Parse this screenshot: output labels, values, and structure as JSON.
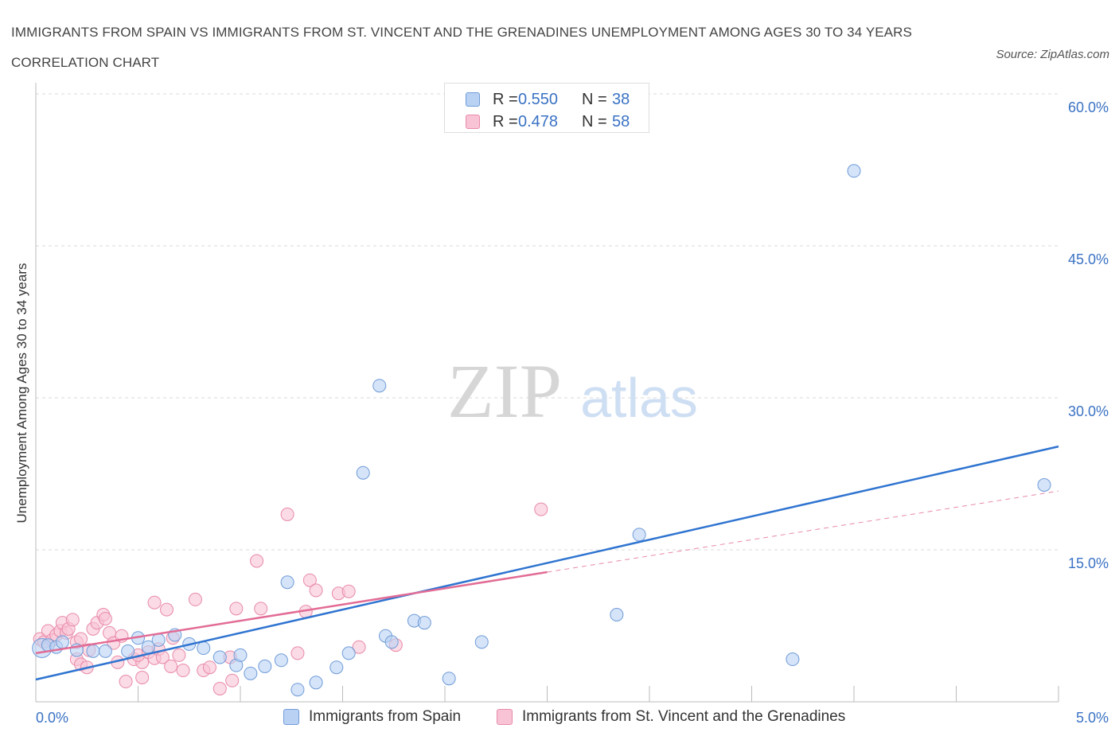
{
  "title": "IMMIGRANTS FROM SPAIN VS IMMIGRANTS FROM ST. VINCENT AND THE GRENADINES UNEMPLOYMENT AMONG AGES 30 TO 34 YEARS CORRELATION CHART",
  "source": "Source: ZipAtlas.com",
  "watermark": {
    "zip": "ZIP",
    "atlas": "atlas"
  },
  "legend_top": [
    {
      "r_label": "R =",
      "r_value": "0.550",
      "n_label": "N =",
      "n_value": "38"
    },
    {
      "r_label": "R =",
      "r_value": "0.478",
      "n_label": "N =",
      "n_value": "58"
    }
  ],
  "colors": {
    "spain_fill": "#b9d2f4",
    "spain_stroke": "#6f9bd8",
    "spain_line": "#2f74d0",
    "svg_fill": "#f8c3d4",
    "svg_stroke": "#e88aa8",
    "svg_line": "#e26c96",
    "tick_label": "#3a72c4",
    "grid": "#d9d9d9"
  },
  "chart_data": {
    "type": "scatter",
    "title": "IMMIGRANTS FROM SPAIN VS IMMIGRANTS FROM ST. VINCENT AND THE GRENADINES UNEMPLOYMENT AMONG AGES 30 TO 34 YEARS CORRELATION CHART",
    "xlabel": "",
    "ylabel": "Unemployment Among Ages 30 to 34 years",
    "xlim": [
      0,
      5
    ],
    "ylim": [
      0,
      60
    ],
    "x_tick_labels": [
      "0.0%",
      "5.0%"
    ],
    "y_ticks": [
      15,
      30,
      45,
      60
    ],
    "y_tick_labels": [
      "15.0%",
      "30.0%",
      "45.0%",
      "60.0%"
    ],
    "grid": true,
    "legend_position": "bottom",
    "series": [
      {
        "name": "Immigrants from Spain",
        "R": 0.55,
        "N": 38,
        "trend": {
          "x": [
            0,
            5
          ],
          "y": [
            2.2,
            25.2
          ]
        },
        "points": [
          [
            0.03,
            5.3
          ],
          [
            0.06,
            5.6
          ],
          [
            0.1,
            5.4
          ],
          [
            0.13,
            5.9
          ],
          [
            0.2,
            5.1
          ],
          [
            0.28,
            5.0
          ],
          [
            0.34,
            5.0
          ],
          [
            0.45,
            5.0
          ],
          [
            0.5,
            6.3
          ],
          [
            0.55,
            5.4
          ],
          [
            0.6,
            6.1
          ],
          [
            0.68,
            6.6
          ],
          [
            0.75,
            5.7
          ],
          [
            0.82,
            5.3
          ],
          [
            0.9,
            4.4
          ],
          [
            0.98,
            3.6
          ],
          [
            1.0,
            4.6
          ],
          [
            1.05,
            2.8
          ],
          [
            1.12,
            3.5
          ],
          [
            1.2,
            4.1
          ],
          [
            1.23,
            11.8
          ],
          [
            1.28,
            1.2
          ],
          [
            1.37,
            1.9
          ],
          [
            1.47,
            3.4
          ],
          [
            1.53,
            4.8
          ],
          [
            1.6,
            22.6
          ],
          [
            1.68,
            31.2
          ],
          [
            1.71,
            6.5
          ],
          [
            1.74,
            5.9
          ],
          [
            1.85,
            8.0
          ],
          [
            1.9,
            7.8
          ],
          [
            2.02,
            2.3
          ],
          [
            2.18,
            5.9
          ],
          [
            2.84,
            8.6
          ],
          [
            2.95,
            16.5
          ],
          [
            3.7,
            4.2
          ],
          [
            4.0,
            52.4
          ],
          [
            4.93,
            21.4
          ]
        ]
      },
      {
        "name": "Immigrants from St. Vincent and the Grenadines",
        "R": 0.478,
        "N": 58,
        "trend": {
          "x": [
            0,
            2.5
          ],
          "y": [
            4.8,
            12.8
          ]
        },
        "trend_extension": {
          "x": [
            2.5,
            5
          ],
          "y": [
            12.8,
            20.8
          ]
        },
        "points": [
          [
            0.02,
            6.2
          ],
          [
            0.04,
            5.9
          ],
          [
            0.06,
            7.0
          ],
          [
            0.08,
            6.1
          ],
          [
            0.1,
            6.6
          ],
          [
            0.12,
            7.0
          ],
          [
            0.13,
            7.8
          ],
          [
            0.15,
            6.8
          ],
          [
            0.16,
            7.2
          ],
          [
            0.18,
            8.1
          ],
          [
            0.2,
            5.9
          ],
          [
            0.22,
            6.2
          ],
          [
            0.2,
            4.2
          ],
          [
            0.22,
            3.7
          ],
          [
            0.25,
            3.4
          ],
          [
            0.26,
            5.1
          ],
          [
            0.28,
            7.2
          ],
          [
            0.3,
            7.8
          ],
          [
            0.33,
            8.6
          ],
          [
            0.36,
            6.8
          ],
          [
            0.34,
            8.2
          ],
          [
            0.38,
            5.8
          ],
          [
            0.4,
            3.9
          ],
          [
            0.42,
            6.5
          ],
          [
            0.44,
            2.0
          ],
          [
            0.48,
            4.2
          ],
          [
            0.52,
            3.9
          ],
          [
            0.5,
            4.6
          ],
          [
            0.52,
            2.4
          ],
          [
            0.55,
            4.9
          ],
          [
            0.58,
            4.3
          ],
          [
            0.58,
            9.8
          ],
          [
            0.6,
            5.2
          ],
          [
            0.62,
            4.4
          ],
          [
            0.64,
            9.1
          ],
          [
            0.66,
            3.5
          ],
          [
            0.67,
            6.3
          ],
          [
            0.7,
            4.6
          ],
          [
            0.72,
            3.1
          ],
          [
            0.78,
            10.1
          ],
          [
            0.82,
            3.1
          ],
          [
            0.85,
            3.4
          ],
          [
            0.9,
            1.3
          ],
          [
            0.95,
            4.4
          ],
          [
            0.98,
            9.2
          ],
          [
            0.96,
            2.1
          ],
          [
            1.08,
            13.9
          ],
          [
            1.1,
            9.2
          ],
          [
            1.23,
            18.5
          ],
          [
            1.28,
            4.8
          ],
          [
            1.32,
            8.9
          ],
          [
            1.34,
            12.0
          ],
          [
            1.37,
            11.0
          ],
          [
            1.48,
            10.7
          ],
          [
            1.53,
            10.9
          ],
          [
            1.58,
            5.4
          ],
          [
            1.76,
            5.6
          ],
          [
            2.47,
            19.0
          ]
        ]
      }
    ]
  }
}
